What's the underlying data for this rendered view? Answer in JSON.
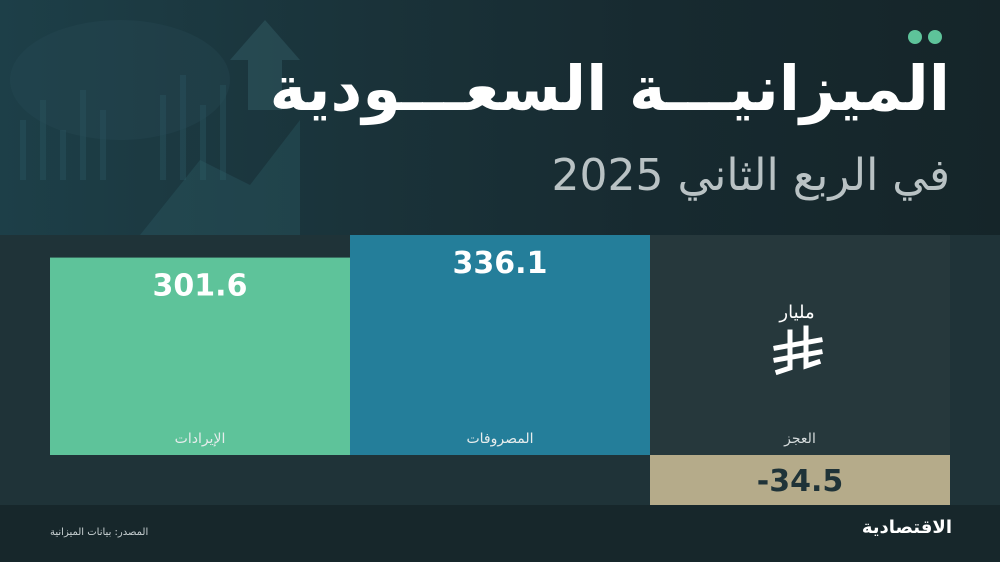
{
  "header": {
    "title": "الميزانيـــة السعـــودية",
    "subtitle": "في الربع الثاني 2025"
  },
  "chart_data": {
    "type": "bar",
    "unit_label": "مليار",
    "currency_icon": "riyal-sign-icon",
    "categories": [
      "الإيرادات",
      "المصروفات",
      "العجز"
    ],
    "values": [
      301.6,
      336.1,
      -34.5
    ],
    "value_labels": [
      "301.6",
      "336.1",
      "-34.5"
    ],
    "colors": [
      "#5ec39a",
      "#247e9a",
      "#b5ab8a"
    ],
    "ylim": [
      -34.5,
      336.1
    ]
  },
  "footer": {
    "source": "المصدر: بيانات الميزانية",
    "logo": "الاقتصادية"
  }
}
